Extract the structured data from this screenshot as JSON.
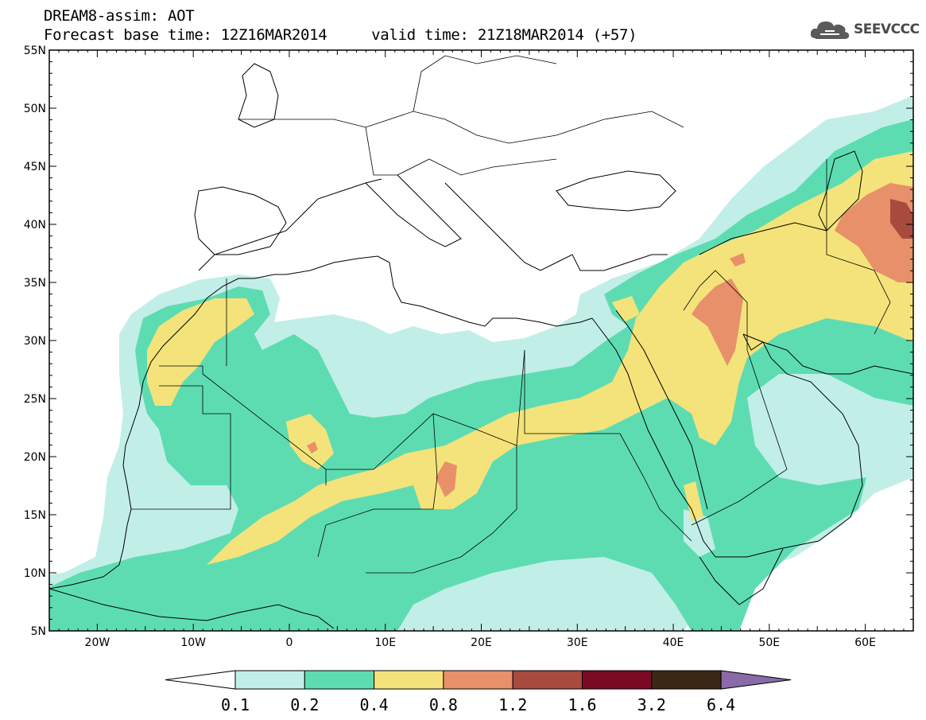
{
  "header": {
    "line1": "DREAM8-assim: AOT",
    "base_time": "Forecast base time: 12Z16MAR2014",
    "valid_time": "valid time: 21Z18MAR2014 (+57)"
  },
  "logo": {
    "text": "SEEVCCC",
    "icon": "cloud-icon"
  },
  "map": {
    "lon_range": [
      -25,
      65
    ],
    "lat_range": [
      5,
      55
    ],
    "lat_ticks": [
      "5N",
      "10N",
      "15N",
      "20N",
      "25N",
      "30N",
      "35N",
      "40N",
      "45N",
      "50N",
      "55N"
    ],
    "lon_ticks": [
      "20W",
      "10W",
      "0",
      "10E",
      "20E",
      "30E",
      "40E",
      "50E",
      "60E"
    ]
  },
  "colorbar": {
    "levels": [
      "0.1",
      "0.2",
      "0.4",
      "0.8",
      "1.2",
      "1.6",
      "3.2",
      "6.4"
    ],
    "colors": [
      "#c2eee8",
      "#5ddcb2",
      "#f4e37a",
      "#e8906a",
      "#a84a3e",
      "#7a0a24",
      "#3b2716",
      "#8a6aa8"
    ]
  }
}
